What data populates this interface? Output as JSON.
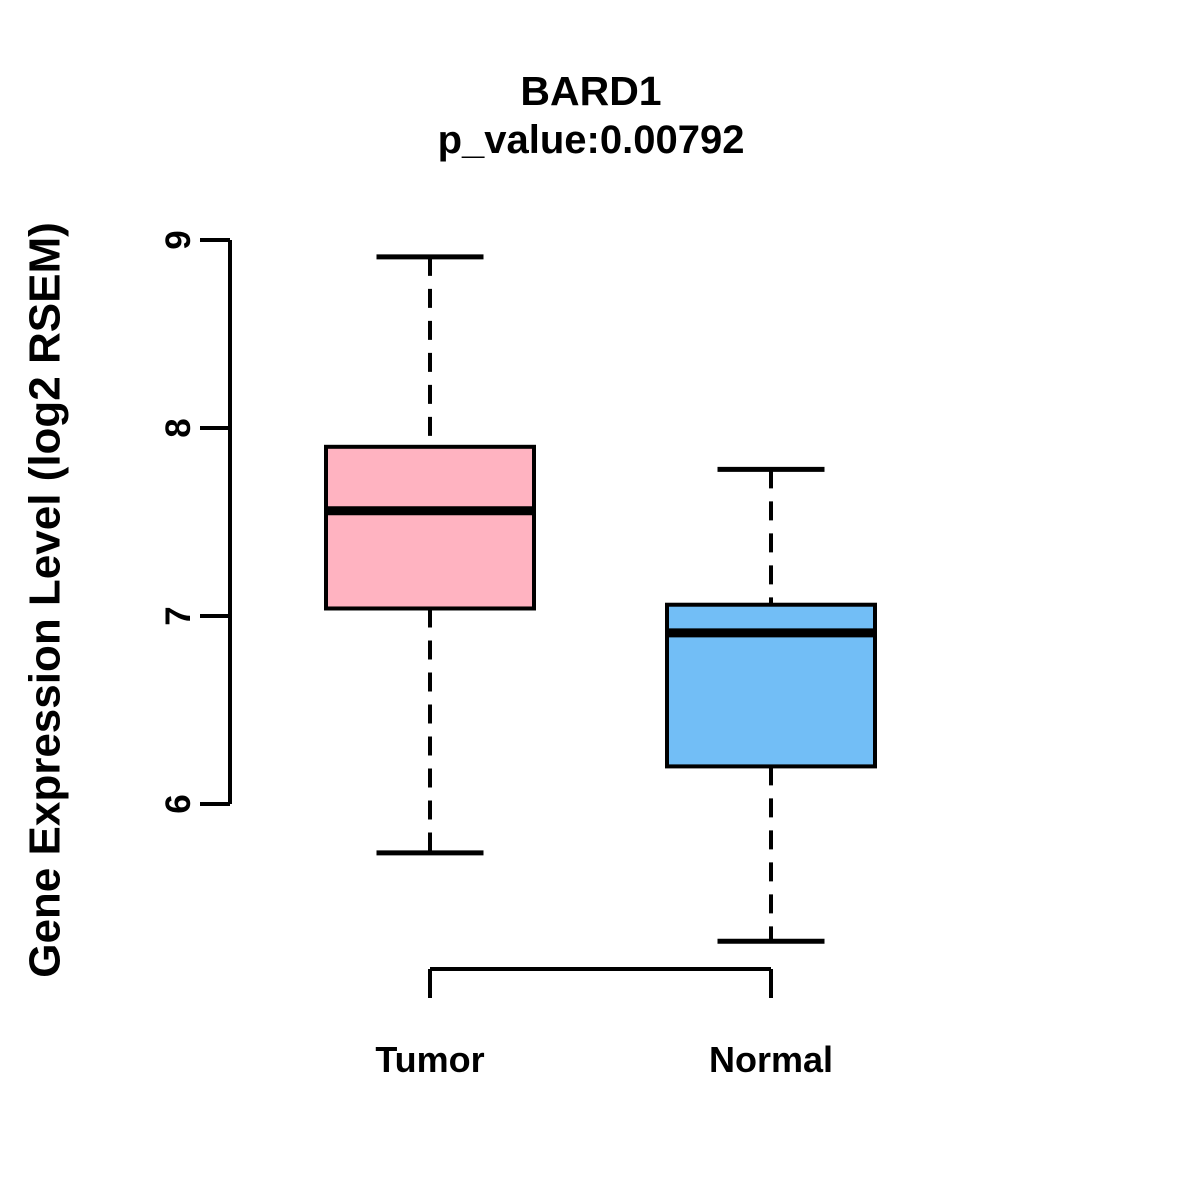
{
  "chart_data": {
    "type": "boxplot",
    "title": "BARD1",
    "subtitle": "p_value:0.00792",
    "ylabel": "Gene Expression Level (log2 RSEM)",
    "xlabel": "",
    "categories": [
      "Tumor",
      "Normal"
    ],
    "yticks": [
      6,
      7,
      8,
      9
    ],
    "ylim": [
      5.1,
      9.0
    ],
    "grid": false,
    "legend": "none",
    "stroke_color": "#000000",
    "background_color": "#FFFFFF",
    "series": [
      {
        "name": "Tumor",
        "box_color": "#FFB3C1",
        "lower_whisker": 5.74,
        "q1": 7.04,
        "median": 7.56,
        "q3": 7.9,
        "upper_whisker": 8.91
      },
      {
        "name": "Normal",
        "box_color": "#72BEF6",
        "lower_whisker": 5.27,
        "q1": 6.2,
        "median": 6.91,
        "q3": 7.06,
        "upper_whisker": 7.78
      }
    ]
  }
}
